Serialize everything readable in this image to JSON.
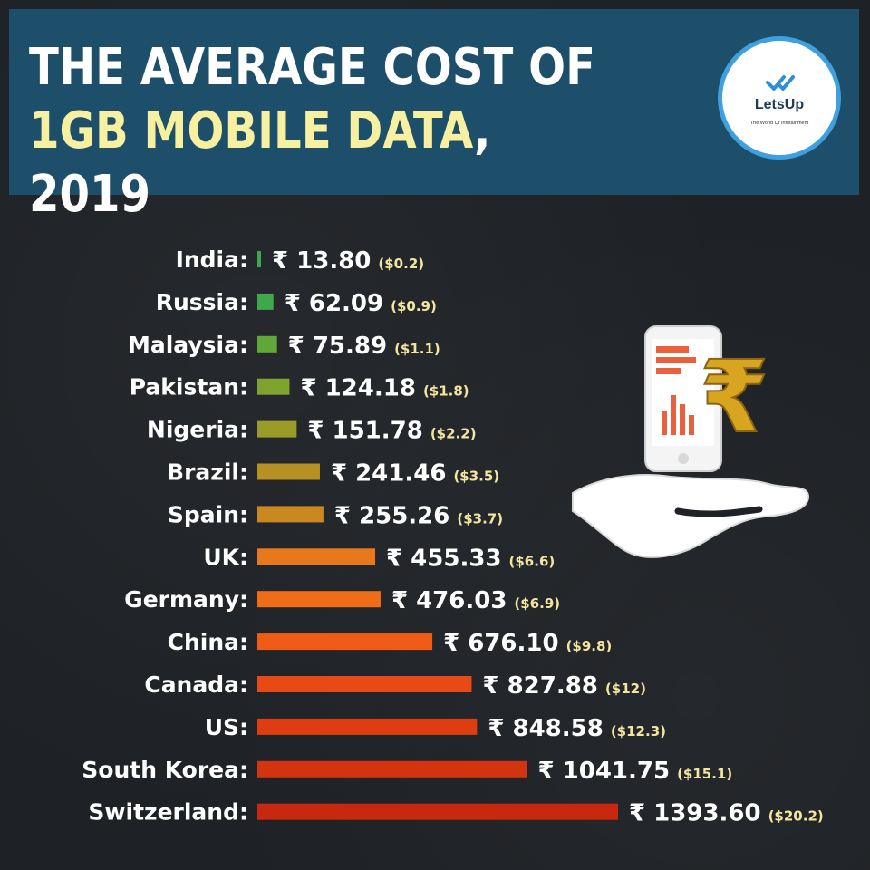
{
  "title": {
    "line1": "THE AVERAGE COST OF",
    "line2_highlight": "1GB MOBILE DATA",
    "line2_rest": ", 2019"
  },
  "logo": {
    "name": "LetsUp",
    "tagline": "The World Of Infotainment"
  },
  "chart_data": {
    "type": "bar",
    "orientation": "horizontal",
    "currency_symbol": "₹",
    "categories": [
      "India",
      "Russia",
      "Malaysia",
      "Pakistan",
      "Nigeria",
      "Brazil",
      "Spain",
      "UK",
      "Germany",
      "China",
      "Canada",
      "US",
      "South Korea",
      "Switzerland"
    ],
    "series": [
      {
        "values": [
          13.8,
          62.09,
          75.89,
          124.18,
          151.78,
          241.46,
          255.26,
          455.33,
          476.03,
          676.1,
          827.88,
          848.58,
          1041.75,
          1393.6
        ]
      }
    ],
    "value_labels": [
      "13.80",
      "62.09",
      "75.89",
      "124.18",
      "151.78",
      "241.46",
      "255.26",
      "455.33",
      "476.03",
      "676.10",
      "827.88",
      "848.58",
      "1041.75",
      "1393.60"
    ],
    "usd_labels": [
      "($0.2)",
      "($0.9)",
      "($1.1)",
      "($1.8)",
      "($2.2)",
      "($3.5)",
      "($3.7)",
      "($6.6)",
      "($6.9)",
      "($9.8)",
      "($12)",
      "($12.3)",
      "($15.1)",
      "($20.2)"
    ],
    "bar_colors": [
      "#3ea84a",
      "#3ea84a",
      "#5fa838",
      "#7ea32e",
      "#9a9c28",
      "#b59124",
      "#c98920",
      "#e8781c",
      "#f06d18",
      "#f05c16",
      "#e84a14",
      "#de3d12",
      "#d33410",
      "#c8280e"
    ],
    "xlim": [
      0,
      1393.6
    ],
    "grid": false,
    "legend": "none"
  }
}
